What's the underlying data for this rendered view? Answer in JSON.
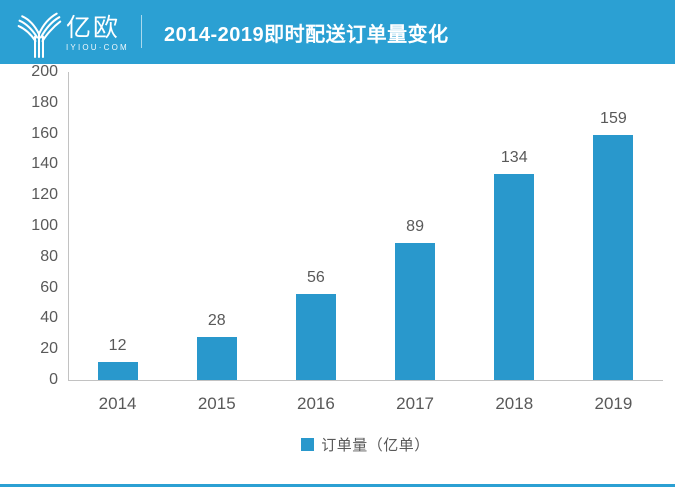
{
  "header": {
    "logo_text": "亿欧",
    "logo_subtext": "IYIOU·COM",
    "title": "2014-2019即时配送订单量变化"
  },
  "legend": {
    "label": "订单量（亿单）"
  },
  "chart_data": {
    "type": "bar",
    "title": "2014-2019即时配送订单量变化",
    "categories": [
      "2014",
      "2015",
      "2016",
      "2017",
      "2018",
      "2019"
    ],
    "values": [
      12,
      28,
      56,
      89,
      134,
      159
    ],
    "series_name": "订单量（亿单）",
    "xlabel": "",
    "ylabel": "",
    "ylim": [
      0,
      200
    ],
    "ytick_step": 20,
    "grid": false,
    "legend_position": "bottom",
    "data_labels": true
  },
  "colors": {
    "header_blue": "#2BA0D3",
    "bar_blue": "#2998CC",
    "axis_gray": "#C2C2C2",
    "text_gray": "#595959",
    "bottom_rule_blue": "#2BA0D3"
  }
}
